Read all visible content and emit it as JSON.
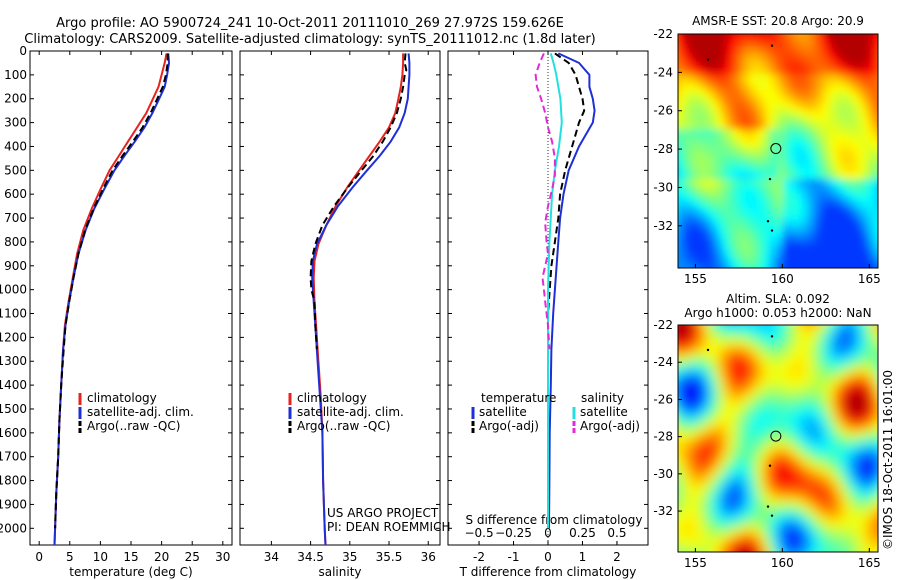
{
  "header": {
    "title_line1": "Argo profile: AO 5900724_241 10-Oct-2011 20111010_269 27.972S 159.626E",
    "title_line2": "Climatology: CARS2009. Satellite-adjusted climatology: synTS_20111012.nc (1.8d later)"
  },
  "credit": "©IMOS 18-Oct-2011 16:01:00",
  "project_note": [
    "US ARGO PROJECT",
    "PI: DEAN ROEMMICH"
  ],
  "colors": {
    "climatology": "#e8231f",
    "satellite": "#1f2fd6",
    "argo": "#000000",
    "satellite_s": "#22e0e0",
    "argo_s": "#e22ad8"
  },
  "chart_data": [
    {
      "id": "temperature",
      "type": "line",
      "xlabel": "temperature (deg C)",
      "xlim": [
        -1.5,
        31.5
      ],
      "xticks": [
        0,
        5,
        10,
        15,
        20,
        25,
        30
      ],
      "ylim": [
        0,
        2070
      ],
      "yticks": [
        0,
        100,
        200,
        300,
        400,
        500,
        600,
        700,
        800,
        900,
        1000,
        1100,
        1200,
        1300,
        1400,
        1500,
        1600,
        1700,
        1800,
        1900,
        2000
      ],
      "series": [
        {
          "name": "climatology",
          "color": "#e8231f",
          "dash": "",
          "points": [
            [
              20.8,
              10
            ],
            [
              20.5,
              50
            ],
            [
              20.0,
              100
            ],
            [
              19.5,
              150
            ],
            [
              18.6,
              200
            ],
            [
              17.5,
              260
            ],
            [
              16.0,
              320
            ],
            [
              14.5,
              380
            ],
            [
              13.0,
              440
            ],
            [
              11.5,
              500
            ],
            [
              10.0,
              580
            ],
            [
              8.6,
              660
            ],
            [
              7.2,
              750
            ],
            [
              6.2,
              850
            ],
            [
              5.5,
              950
            ],
            [
              4.8,
              1050
            ],
            [
              4.2,
              1150
            ],
            [
              3.9,
              1250
            ],
            [
              3.6,
              1400
            ],
            [
              3.3,
              1550
            ],
            [
              3.1,
              1700
            ],
            [
              2.8,
              1850
            ],
            [
              2.6,
              2000
            ],
            [
              2.5,
              2070
            ]
          ]
        },
        {
          "name": "satellite-adj. clim.",
          "color": "#1f2fd6",
          "dash": "",
          "points": [
            [
              21.1,
              10
            ],
            [
              21.2,
              50
            ],
            [
              20.9,
              100
            ],
            [
              20.5,
              150
            ],
            [
              19.6,
              200
            ],
            [
              18.5,
              260
            ],
            [
              17.2,
              320
            ],
            [
              15.6,
              380
            ],
            [
              13.9,
              440
            ],
            [
              12.3,
              500
            ],
            [
              10.6,
              580
            ],
            [
              9.0,
              660
            ],
            [
              7.6,
              750
            ],
            [
              6.4,
              850
            ],
            [
              5.6,
              950
            ],
            [
              4.9,
              1050
            ],
            [
              4.3,
              1150
            ],
            [
              3.9,
              1250
            ],
            [
              3.6,
              1400
            ],
            [
              3.3,
              1550
            ],
            [
              3.1,
              1700
            ],
            [
              2.8,
              1850
            ],
            [
              2.6,
              2000
            ],
            [
              2.5,
              2070
            ]
          ]
        },
        {
          "name": "Argo(..raw -QC)",
          "color": "#000000",
          "dash": "7,4",
          "points": [
            [
              21.0,
              10
            ],
            [
              21.0,
              50
            ],
            [
              20.7,
              100
            ],
            [
              20.2,
              150
            ],
            [
              19.3,
              200
            ],
            [
              18.2,
              260
            ],
            [
              16.9,
              320
            ],
            [
              15.3,
              380
            ],
            [
              13.6,
              440
            ],
            [
              12.0,
              500
            ],
            [
              10.4,
              580
            ],
            [
              8.9,
              660
            ],
            [
              7.5,
              750
            ],
            [
              6.4,
              850
            ],
            [
              5.6,
              950
            ],
            [
              4.9,
              1050
            ],
            [
              4.3,
              1150
            ],
            [
              4.0,
              1250
            ],
            [
              3.6,
              1400
            ],
            [
              3.3,
              1550
            ],
            [
              3.1,
              1700
            ],
            [
              2.8,
              1850
            ],
            [
              2.6,
              2000
            ]
          ]
        }
      ],
      "legend": {
        "placement": "lower-middle",
        "entries": [
          "climatology",
          "satellite-adj. clim.",
          "Argo(..raw -QC)"
        ]
      }
    },
    {
      "id": "salinity",
      "type": "line",
      "xlabel": "salinity",
      "xlim": [
        33.6,
        36.15
      ],
      "xticks": [
        34,
        34.5,
        35,
        35.5,
        36
      ],
      "xticklabels": [
        "34",
        "34.5",
        "35",
        "35.5",
        "36"
      ],
      "ylim": [
        0,
        2070
      ],
      "series": [
        {
          "name": "climatology",
          "color": "#e8231f",
          "dash": "",
          "points": [
            [
              35.68,
              10
            ],
            [
              35.68,
              50
            ],
            [
              35.67,
              100
            ],
            [
              35.65,
              150
            ],
            [
              35.62,
              200
            ],
            [
              35.58,
              260
            ],
            [
              35.5,
              320
            ],
            [
              35.38,
              380
            ],
            [
              35.25,
              440
            ],
            [
              35.12,
              500
            ],
            [
              34.97,
              570
            ],
            [
              34.82,
              650
            ],
            [
              34.7,
              730
            ],
            [
              34.6,
              810
            ],
            [
              34.55,
              880
            ],
            [
              34.54,
              950
            ],
            [
              34.55,
              1050
            ],
            [
              34.57,
              1150
            ],
            [
              34.6,
              1300
            ],
            [
              34.63,
              1450
            ],
            [
              34.65,
              1600
            ],
            [
              34.66,
              1800
            ],
            [
              34.68,
              2000
            ],
            [
              34.69,
              2070
            ]
          ]
        },
        {
          "name": "satellite-adj. clim.",
          "color": "#1f2fd6",
          "dash": "",
          "points": [
            [
              35.75,
              10
            ],
            [
              35.76,
              50
            ],
            [
              35.76,
              100
            ],
            [
              35.75,
              150
            ],
            [
              35.74,
              200
            ],
            [
              35.7,
              260
            ],
            [
              35.63,
              320
            ],
            [
              35.52,
              380
            ],
            [
              35.38,
              440
            ],
            [
              35.22,
              500
            ],
            [
              35.04,
              570
            ],
            [
              34.85,
              650
            ],
            [
              34.7,
              730
            ],
            [
              34.58,
              810
            ],
            [
              34.53,
              880
            ],
            [
              34.52,
              950
            ],
            [
              34.54,
              1050
            ],
            [
              34.56,
              1150
            ],
            [
              34.59,
              1300
            ],
            [
              34.62,
              1450
            ],
            [
              34.65,
              1600
            ],
            [
              34.66,
              1800
            ],
            [
              34.68,
              2000
            ],
            [
              34.69,
              2070
            ]
          ]
        },
        {
          "name": "Argo(..raw -QC)",
          "color": "#000000",
          "dash": "7,4",
          "points": [
            [
              35.71,
              10
            ],
            [
              35.7,
              50
            ],
            [
              35.72,
              80
            ],
            [
              35.7,
              100
            ],
            [
              35.68,
              150
            ],
            [
              35.65,
              200
            ],
            [
              35.6,
              260
            ],
            [
              35.52,
              320
            ],
            [
              35.42,
              380
            ],
            [
              35.3,
              440
            ],
            [
              35.15,
              500
            ],
            [
              34.98,
              570
            ],
            [
              34.8,
              650
            ],
            [
              34.65,
              730
            ],
            [
              34.56,
              810
            ],
            [
              34.51,
              880
            ],
            [
              34.5,
              950
            ],
            [
              34.51,
              1000
            ],
            [
              34.55,
              1050
            ],
            [
              34.56,
              1150
            ],
            [
              34.58,
              1250
            ]
          ]
        }
      ],
      "legend": {
        "placement": "lower-middle",
        "entries": [
          "climatology",
          "satellite-adj. clim.",
          "Argo(..raw -QC)"
        ]
      }
    },
    {
      "id": "difference",
      "type": "line",
      "xlabel": "T difference from climatology",
      "top_label": "S difference from climatology",
      "xlim": [
        -2.9,
        2.9
      ],
      "xticks": [
        -2,
        -1,
        0,
        1,
        2
      ],
      "top_ticks": [
        -0.5,
        -0.25,
        0,
        0.25,
        0.5
      ],
      "top_ticklabels": [
        "−0.5",
        "−0.25",
        "0",
        "0.25",
        "0.5"
      ],
      "ylim": [
        0,
        2070
      ],
      "series": [
        {
          "name": "temperature satellite",
          "color": "#1f2fd6",
          "dash": "",
          "points": [
            [
              0.3,
              10
            ],
            [
              0.9,
              50
            ],
            [
              1.2,
              100
            ],
            [
              1.2,
              150
            ],
            [
              1.3,
              200
            ],
            [
              1.35,
              250
            ],
            [
              1.3,
              300
            ],
            [
              1.1,
              350
            ],
            [
              0.9,
              400
            ],
            [
              0.6,
              500
            ],
            [
              0.45,
              600
            ],
            [
              0.35,
              700
            ],
            [
              0.3,
              800
            ],
            [
              0.25,
              900
            ],
            [
              0.2,
              1000
            ],
            [
              0.15,
              1100
            ],
            [
              0.1,
              1250
            ],
            [
              0.08,
              1400
            ],
            [
              0.05,
              1600
            ],
            [
              0.04,
              1800
            ],
            [
              0.03,
              2000
            ]
          ]
        },
        {
          "name": "temperature Argo(-adj)",
          "color": "#000000",
          "dash": "7,4",
          "points": [
            [
              0.2,
              10
            ],
            [
              0.6,
              50
            ],
            [
              0.8,
              100
            ],
            [
              0.9,
              150
            ],
            [
              1.0,
              200
            ],
            [
              1.05,
              250
            ],
            [
              0.9,
              300
            ],
            [
              0.8,
              350
            ],
            [
              0.7,
              400
            ],
            [
              0.5,
              500
            ],
            [
              0.35,
              600
            ],
            [
              0.3,
              700
            ],
            [
              0.2,
              800
            ],
            [
              0.1,
              900
            ],
            [
              0.05,
              1000
            ],
            [
              0.0,
              1100
            ],
            [
              0.0,
              1250
            ],
            [
              0.0,
              1400
            ],
            [
              0.0,
              1600
            ],
            [
              0.0,
              1800
            ],
            [
              0.0,
              2000
            ]
          ]
        },
        {
          "name": "salinity satellite",
          "color": "#22e0e0",
          "dash": "",
          "points": [
            [
              0.02,
              10
            ],
            [
              0.04,
              50
            ],
            [
              0.06,
              100
            ],
            [
              0.09,
              200
            ],
            [
              0.1,
              300
            ],
            [
              0.08,
              400
            ],
            [
              0.05,
              500
            ],
            [
              0.03,
              600
            ],
            [
              0.01,
              800
            ],
            [
              0.0,
              1000
            ],
            [
              0.0,
              1200
            ],
            [
              0.0,
              1400
            ],
            [
              0.0,
              1600
            ],
            [
              0.0,
              1800
            ],
            [
              0.0,
              2000
            ]
          ]
        },
        {
          "name": "salinity Argo(-adj)",
          "color": "#e22ad8",
          "dash": "7,4",
          "points": [
            [
              -0.03,
              10
            ],
            [
              -0.06,
              50
            ],
            [
              -0.09,
              100
            ],
            [
              -0.08,
              150
            ],
            [
              -0.05,
              200
            ],
            [
              -0.02,
              260
            ],
            [
              0.0,
              320
            ],
            [
              0.03,
              380
            ],
            [
              0.05,
              450
            ],
            [
              0.05,
              520
            ],
            [
              0.03,
              580
            ],
            [
              0.0,
              650
            ],
            [
              -0.02,
              720
            ],
            [
              -0.01,
              800
            ],
            [
              0.0,
              850
            ],
            [
              -0.02,
              900
            ],
            [
              -0.04,
              950
            ],
            [
              -0.03,
              1000
            ],
            [
              -0.02,
              1050
            ],
            [
              -0.01,
              1100
            ],
            [
              0.0,
              1150
            ],
            [
              0.01,
              1250
            ]
          ]
        }
      ],
      "legend": {
        "placement": "lower-middle",
        "temperature_title": "temperature",
        "salinity_title": "salinity",
        "temperature_entries": [
          "satellite",
          "Argo(-adj)"
        ],
        "salinity_entries": [
          "satellite",
          "Argo(-adj)"
        ]
      }
    },
    {
      "id": "sst_map",
      "type": "heatmap",
      "title": "AMSR-E SST: 20.8 Argo: 20.9",
      "xlim": [
        154,
        165.5
      ],
      "ylim": [
        -34.2,
        -22
      ],
      "xticks": [
        155,
        160,
        165
      ],
      "yticks": [
        -22,
        -24,
        -26,
        -28,
        -30,
        -32
      ],
      "argo_position": [
        159.626,
        -27.972
      ]
    },
    {
      "id": "sla_map",
      "type": "heatmap",
      "title_line1": "Altim. SLA: 0.092",
      "title_line2": "Argo h1000: 0.053 h2000: NaN",
      "xlim": [
        154,
        165.5
      ],
      "ylim": [
        -34.2,
        -22
      ],
      "xticks": [
        155,
        160,
        165
      ],
      "yticks": [
        -22,
        -24,
        -26,
        -28,
        -30,
        -32
      ],
      "argo_position": [
        159.626,
        -27.972
      ]
    }
  ]
}
